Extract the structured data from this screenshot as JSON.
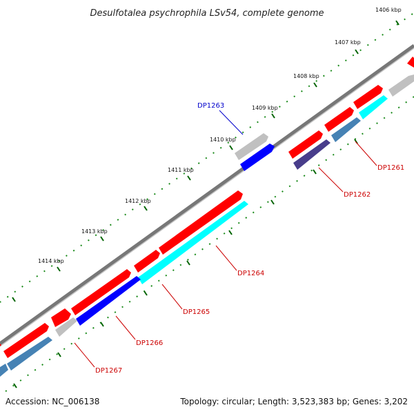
{
  "title": "Desulfotalea psychrophila LSv54, complete genome",
  "footer": {
    "accession": "Accession: NC_006138",
    "topology": "Topology: circular; Length: 3,523,383 bp; Genes: 3,202"
  },
  "ticks": [
    "1406 kbp",
    "1407 kbp",
    "1408 kbp",
    "1409 kbp",
    "1410 kbp",
    "1411 kbp",
    "1412 kbp",
    "1413 kbp",
    "1414 kbp"
  ],
  "genes": [
    {
      "label": "DP1261",
      "label_color": "#cc0000"
    },
    {
      "label": "DP1262",
      "label_color": "#cc0000"
    },
    {
      "label": "DP1263",
      "label_color": "#0000cc"
    },
    {
      "label": "DP1264",
      "label_color": "#cc0000"
    },
    {
      "label": "DP1265",
      "label_color": "#cc0000"
    },
    {
      "label": "DP1266",
      "label_color": "#cc0000"
    },
    {
      "label": "DP1267",
      "label_color": "#cc0000"
    }
  ],
  "colors": {
    "backbone": "#808080",
    "forward_cds": "#ff0000",
    "reverse_cds": "#4682b4",
    "gray_feature": "#c0c0c0",
    "blue_feature": "#0000ff",
    "cyan_feature": "#00ffff",
    "navy_feature": "#483d8b",
    "tick_major": "#006400",
    "tick_minor": "#009900"
  }
}
